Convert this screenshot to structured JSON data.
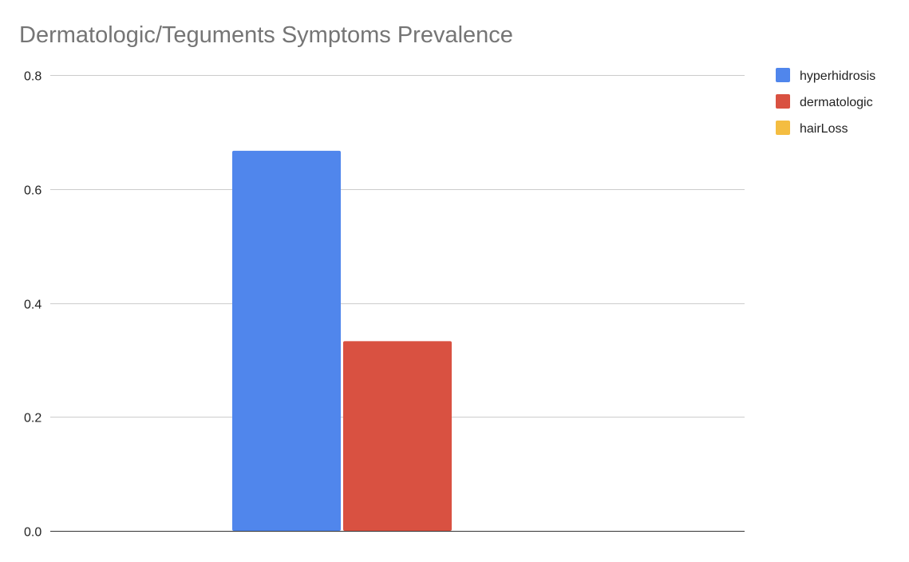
{
  "chart_data": {
    "type": "bar",
    "title": "Dermatologic/Teguments Symptoms Prevalence",
    "xlabel": "",
    "ylabel": "",
    "ylim": [
      0,
      0.8
    ],
    "yticks": [
      "0.0",
      "0.2",
      "0.4",
      "0.6",
      "0.8"
    ],
    "grid": true,
    "legend_position": "right",
    "categories": [
      ""
    ],
    "series": [
      {
        "name": "hyperhidrosis",
        "values": [
          0.667
        ],
        "color": "#5086ec"
      },
      {
        "name": "dermatologic",
        "values": [
          0.333
        ],
        "color": "#d95141"
      },
      {
        "name": "hairLoss",
        "values": [
          0
        ],
        "color": "#f4bd41"
      }
    ]
  }
}
